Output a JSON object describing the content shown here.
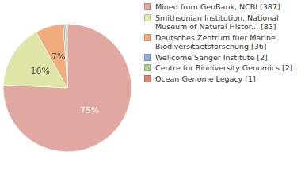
{
  "chart_data": {
    "type": "pie",
    "categories": [
      "Mined from GenBank, NCBI [387]",
      "Smithsonian Institution, National Museum of Natural Histor... [83]",
      "Deutsches Zentrum fuer Marine Biodiversitaetsforschung [36]",
      "Wellcome Sanger Institute [2]",
      "Centre for Biodiversity Genomics [2]",
      "Ocean Genome Legacy [1]"
    ],
    "values": [
      75,
      16,
      7,
      0.4,
      0.4,
      0.2
    ],
    "value_labels": [
      "75%",
      "16%",
      "7%",
      null,
      null,
      null
    ],
    "colors": [
      "#e0a8a0",
      "#dfe6a8",
      "#f0ac7c",
      "#93afd8",
      "#a9cd8a",
      "#e0826a"
    ],
    "data_labels": true,
    "legend": "right"
  }
}
